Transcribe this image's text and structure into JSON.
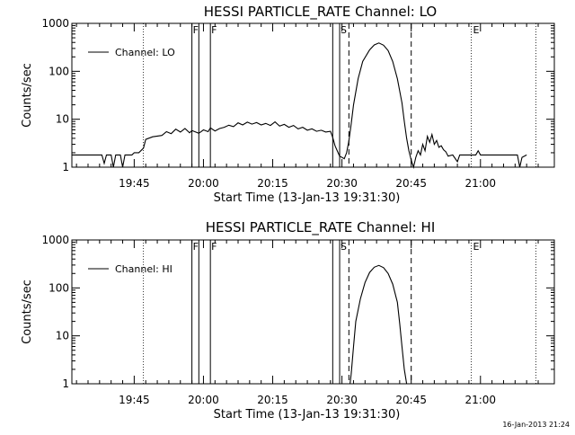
{
  "timestamp": "16-Jan-2013 21:24",
  "markers": {
    "flag_f": "F",
    "flag_s": "S",
    "flag_e": "E"
  },
  "chart_data": [
    {
      "type": "line",
      "title": "HESSI PARTICLE_RATE Channel: LO",
      "xlabel": "Start Time (13-Jan-13 19:31:30)",
      "ylabel": "Counts/sec",
      "yscale": "log",
      "ylim": [
        1,
        1000
      ],
      "xlim": [
        "19:31:30",
        "21:16:00"
      ],
      "yticks": [
        {
          "v": 1,
          "label": "1"
        },
        {
          "v": 10,
          "label": "10"
        },
        {
          "v": 100,
          "label": "100"
        },
        {
          "v": 1000,
          "label": "1000"
        }
      ],
      "xticks": [
        "19:45",
        "20:00",
        "20:15",
        "20:30",
        "20:45",
        "21:00"
      ],
      "legend": {
        "entry": "Channel: LO",
        "placement": "top-left"
      },
      "grid": false,
      "vertical_markers": {
        "dotted": [
          "19:47:00",
          "20:58:00",
          "21:12:00"
        ],
        "solid": [
          "19:57:30",
          "19:59:00",
          "20:01:30",
          "20:28:00",
          "20:29:30"
        ],
        "dashed": [
          "20:31:30",
          "20:45:00"
        ]
      },
      "series": [
        {
          "points": [
            [
              "19:31:30",
              1.8
            ],
            [
              "19:38:00",
              1.8
            ],
            [
              "19:38:30",
              1.2
            ],
            [
              "19:39:00",
              1.8
            ],
            [
              "19:40:00",
              1.8
            ],
            [
              "19:40:30",
              1.0
            ],
            [
              "19:41:00",
              1.8
            ],
            [
              "19:42:00",
              1.8
            ],
            [
              "19:42:30",
              1.0
            ],
            [
              "19:43:00",
              1.8
            ],
            [
              "19:44:30",
              1.8
            ],
            [
              "19:45:00",
              2.0
            ],
            [
              "19:46:00",
              2.0
            ],
            [
              "19:47:00",
              2.5
            ],
            [
              "19:47:30",
              3.8
            ],
            [
              "19:49:00",
              4.3
            ],
            [
              "19:51:00",
              4.6
            ],
            [
              "19:52:00",
              5.5
            ],
            [
              "19:53:00",
              5.0
            ],
            [
              "19:54:00",
              6.2
            ],
            [
              "19:55:00",
              5.4
            ],
            [
              "19:56:00",
              6.4
            ],
            [
              "19:57:00",
              5.2
            ],
            [
              "19:57:30",
              5.8
            ],
            [
              "19:59:00",
              5.1
            ],
            [
              "20:00:00",
              6.0
            ],
            [
              "20:01:00",
              5.5
            ],
            [
              "20:01:30",
              6.6
            ],
            [
              "20:02:30",
              5.7
            ],
            [
              "20:03:30",
              6.4
            ],
            [
              "20:04:30",
              6.8
            ],
            [
              "20:05:30",
              7.5
            ],
            [
              "20:06:30",
              7.0
            ],
            [
              "20:07:30",
              8.4
            ],
            [
              "20:08:30",
              7.6
            ],
            [
              "20:09:30",
              8.7
            ],
            [
              "20:10:30",
              7.9
            ],
            [
              "20:11:30",
              8.5
            ],
            [
              "20:12:30",
              7.6
            ],
            [
              "20:13:30",
              8.2
            ],
            [
              "20:14:30",
              7.4
            ],
            [
              "20:15:30",
              8.8
            ],
            [
              "20:16:30",
              7.2
            ],
            [
              "20:17:30",
              7.8
            ],
            [
              "20:18:30",
              6.8
            ],
            [
              "20:19:30",
              7.4
            ],
            [
              "20:20:30",
              6.3
            ],
            [
              "20:21:30",
              6.8
            ],
            [
              "20:22:30",
              5.9
            ],
            [
              "20:23:30",
              6.3
            ],
            [
              "20:24:30",
              5.6
            ],
            [
              "20:25:30",
              5.9
            ],
            [
              "20:26:30",
              5.4
            ],
            [
              "20:27:30",
              5.6
            ],
            [
              "20:28:00",
              4.2
            ],
            [
              "20:28:30",
              2.8
            ],
            [
              "20:29:30",
              1.7
            ],
            [
              "20:30:30",
              1.5
            ],
            [
              "20:31:00",
              2.0
            ],
            [
              "20:31:30",
              3.5
            ],
            [
              "20:32:00",
              8.0
            ],
            [
              "20:32:30",
              20
            ],
            [
              "20:33:30",
              70
            ],
            [
              "20:34:30",
              160
            ],
            [
              "20:36:00",
              280
            ],
            [
              "20:37:00",
              355
            ],
            [
              "20:38:00",
              390
            ],
            [
              "20:39:00",
              350
            ],
            [
              "20:40:00",
              270
            ],
            [
              "20:41:00",
              160
            ],
            [
              "20:42:00",
              70
            ],
            [
              "20:43:00",
              22
            ],
            [
              "20:43:30",
              9
            ],
            [
              "20:44:00",
              4
            ],
            [
              "20:44:30",
              2.2
            ],
            [
              "20:45:00",
              1.4
            ],
            [
              "20:45:30",
              1.0
            ],
            [
              "20:46:00",
              1.6
            ],
            [
              "20:46:30",
              2.2
            ],
            [
              "20:47:00",
              1.8
            ],
            [
              "20:47:30",
              3.0
            ],
            [
              "20:48:00",
              2.2
            ],
            [
              "20:48:30",
              4.4
            ],
            [
              "20:49:00",
              3.3
            ],
            [
              "20:49:30",
              4.8
            ],
            [
              "20:50:00",
              3.0
            ],
            [
              "20:50:30",
              3.6
            ],
            [
              "20:51:00",
              2.6
            ],
            [
              "20:51:30",
              2.8
            ],
            [
              "20:52:00",
              2.3
            ],
            [
              "20:52:30",
              2.1
            ],
            [
              "20:53:00",
              1.7
            ],
            [
              "20:54:00",
              1.8
            ],
            [
              "20:55:00",
              1.3
            ],
            [
              "20:55:30",
              1.8
            ],
            [
              "20:59:00",
              1.8
            ],
            [
              "20:59:30",
              2.2
            ],
            [
              "21:00:00",
              1.8
            ],
            [
              "21:08:00",
              1.8
            ],
            [
              "21:08:30",
              1.0
            ],
            [
              "21:09:00",
              1.6
            ],
            [
              "21:10:00",
              1.8
            ]
          ]
        }
      ]
    },
    {
      "type": "line",
      "title": "HESSI PARTICLE_RATE Channel: HI",
      "xlabel": "Start Time (13-Jan-13 19:31:30)",
      "ylabel": "Counts/sec",
      "yscale": "log",
      "ylim": [
        1,
        1000
      ],
      "xlim": [
        "19:31:30",
        "21:16:00"
      ],
      "yticks": [
        {
          "v": 1,
          "label": "1"
        },
        {
          "v": 10,
          "label": "10"
        },
        {
          "v": 100,
          "label": "100"
        },
        {
          "v": 1000,
          "label": "1000"
        }
      ],
      "xticks": [
        "19:45",
        "20:00",
        "20:15",
        "20:30",
        "20:45",
        "21:00"
      ],
      "legend": {
        "entry": "Channel: HI",
        "placement": "top-left"
      },
      "grid": false,
      "vertical_markers": {
        "dotted": [
          "19:47:00",
          "20:58:00",
          "21:12:00"
        ],
        "solid": [
          "19:57:30",
          "19:59:00",
          "20:01:30",
          "20:28:00",
          "20:29:30"
        ],
        "dashed": [
          "20:31:30",
          "20:45:00"
        ]
      },
      "series": [
        {
          "points": [
            [
              "20:31:45",
              1.0
            ],
            [
              "20:32:00",
              1.6
            ],
            [
              "20:32:30",
              6
            ],
            [
              "20:33:00",
              20
            ],
            [
              "20:34:00",
              60
            ],
            [
              "20:35:00",
              130
            ],
            [
              "20:36:00",
              210
            ],
            [
              "20:37:00",
              270
            ],
            [
              "20:38:00",
              295
            ],
            [
              "20:39:00",
              265
            ],
            [
              "20:40:00",
              200
            ],
            [
              "20:41:00",
              120
            ],
            [
              "20:42:00",
              50
            ],
            [
              "20:42:30",
              18
            ],
            [
              "20:43:00",
              6
            ],
            [
              "20:43:30",
              2.0
            ],
            [
              "20:44:00",
              1.0
            ]
          ]
        }
      ]
    }
  ]
}
